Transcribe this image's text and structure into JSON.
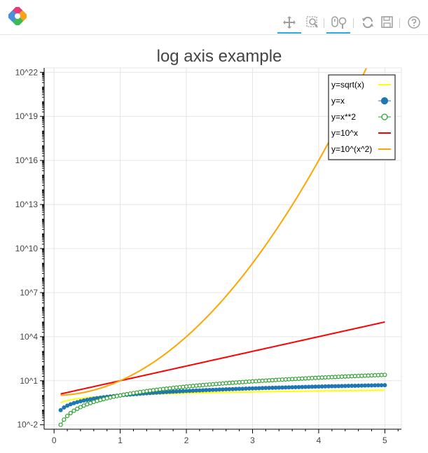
{
  "toolbar": {
    "logo_icon": "bokeh-logo-icon",
    "tools": [
      {
        "name": "pan-tool",
        "icon": "pan-icon",
        "active": true
      },
      {
        "name": "box-zoom-tool",
        "icon": "box-zoom-icon",
        "active": false
      },
      {
        "name": "wheel-zoom-tool",
        "icon": "wheel-zoom-icon",
        "active": true
      },
      {
        "name": "reset-tool",
        "icon": "reset-icon",
        "active": false
      },
      {
        "name": "save-tool",
        "icon": "save-icon",
        "active": false
      },
      {
        "name": "help-tool",
        "icon": "help-icon",
        "active": false
      }
    ],
    "accent_color": "#26aae1"
  },
  "chart_data": {
    "type": "line",
    "title": "log axis example",
    "xlabel": "",
    "ylabel": "",
    "xlim": [
      -0.15,
      5.25
    ],
    "ylim": [
      -2.3,
      22.3
    ],
    "y_scale": "log",
    "grid": true,
    "legend_position": "top-right",
    "x_ticks": [
      0,
      1,
      2,
      3,
      4,
      5
    ],
    "y_ticks": [
      {
        "value": -2,
        "label": "10^-2"
      },
      {
        "value": 1,
        "label": "10^1"
      },
      {
        "value": 4,
        "label": "10^4"
      },
      {
        "value": 7,
        "label": "10^7"
      },
      {
        "value": 10,
        "label": "10^10"
      },
      {
        "value": 13,
        "label": "10^13"
      },
      {
        "value": 16,
        "label": "10^16"
      },
      {
        "value": 19,
        "label": "10^19"
      },
      {
        "value": 22,
        "label": "10^22"
      }
    ],
    "x": [
      0.1,
      0.15,
      0.2,
      0.25,
      0.3,
      0.35,
      0.4,
      0.45,
      0.5,
      0.55,
      0.6,
      0.65,
      0.7,
      0.75,
      0.8,
      0.85,
      0.9,
      0.95,
      1.0,
      1.05,
      1.1,
      1.15,
      1.2,
      1.25,
      1.3,
      1.35,
      1.4,
      1.45,
      1.5,
      1.55,
      1.6,
      1.65,
      1.7,
      1.75,
      1.8,
      1.85,
      1.9,
      1.95,
      2.0,
      2.05,
      2.1,
      2.15,
      2.2,
      2.25,
      2.3,
      2.35,
      2.4,
      2.45,
      2.5,
      2.55,
      2.6,
      2.65,
      2.7,
      2.75,
      2.8,
      2.85,
      2.9,
      2.95,
      3.0,
      3.05,
      3.1,
      3.15,
      3.2,
      3.25,
      3.3,
      3.35,
      3.4,
      3.45,
      3.5,
      3.55,
      3.6,
      3.65,
      3.7,
      3.75,
      3.8,
      3.85,
      3.9,
      3.95,
      4.0,
      4.05,
      4.1,
      4.15,
      4.2,
      4.25,
      4.3,
      4.35,
      4.4,
      4.45,
      4.5,
      4.55,
      4.6,
      4.65,
      4.7,
      4.75,
      4.8,
      4.85,
      4.9,
      4.95,
      5.0
    ],
    "series": [
      {
        "name": "y=sqrt(x)",
        "formula": "sqrt(x)",
        "color": "#ffff00",
        "style": "line",
        "line_width": 2
      },
      {
        "name": "y=x",
        "formula": "x",
        "color": "#1f77b4",
        "style": "line+filled-circle",
        "line_width": 1
      },
      {
        "name": "y=x**2",
        "formula": "x^2",
        "color": "#2ca02c",
        "style": "line+open-circle",
        "line_width": 1
      },
      {
        "name": "y=10^x",
        "formula": "10^x",
        "color": "#ff0000",
        "style": "line",
        "line_width": 2
      },
      {
        "name": "y=10^(x^2)",
        "formula": "10^(x^2)",
        "color": "#ffa500",
        "style": "line",
        "line_width": 2
      }
    ]
  }
}
